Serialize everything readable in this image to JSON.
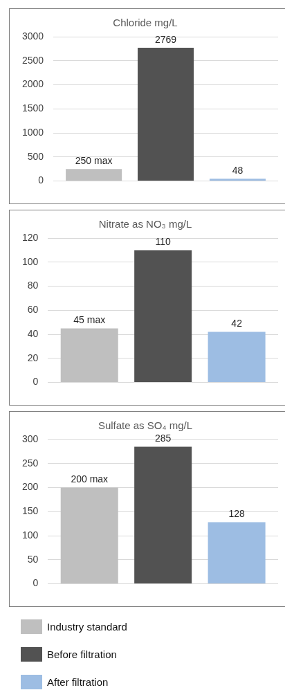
{
  "chart_data": [
    {
      "type": "bar",
      "title": "Chloride mg/L",
      "categories": [
        null
      ],
      "ylim": [
        0,
        3000
      ],
      "yticks": [
        0,
        500,
        1000,
        1500,
        2000,
        2500,
        3000
      ],
      "grid": "y",
      "series": [
        {
          "color": "#bfbfbf",
          "values": [
            250
          ],
          "value_labels": [
            "250 max"
          ]
        },
        {
          "color": "#525252",
          "values": [
            2769
          ],
          "value_labels": [
            "2769"
          ]
        },
        {
          "color": "#9dbde3",
          "values": [
            48
          ],
          "value_labels": [
            "48"
          ]
        }
      ]
    },
    {
      "type": "bar",
      "title": "Nitrate as NO₃ mg/L",
      "categories": [
        null
      ],
      "ylim": [
        0,
        120
      ],
      "yticks": [
        0,
        20,
        40,
        60,
        80,
        100,
        120
      ],
      "grid": "y",
      "series": [
        {
          "color": "#bfbfbf",
          "values": [
            45
          ],
          "value_labels": [
            "45 max"
          ]
        },
        {
          "color": "#525252",
          "values": [
            110
          ],
          "value_labels": [
            "110"
          ]
        },
        {
          "color": "#9dbde3",
          "values": [
            42
          ],
          "value_labels": [
            "42"
          ]
        }
      ]
    },
    {
      "type": "bar",
      "title": "Sulfate as SO₄ mg/L",
      "categories": [
        null
      ],
      "ylim": [
        0,
        300
      ],
      "yticks": [
        0,
        50,
        100,
        150,
        200,
        250,
        300
      ],
      "grid": "y",
      "legend": "bottom",
      "series": [
        {
          "name": "Industry standard",
          "color": "#bfbfbf",
          "values": [
            200
          ],
          "value_labels": [
            "200 max"
          ]
        },
        {
          "name": "Before filtration",
          "color": "#525252",
          "values": [
            285
          ],
          "value_labels": [
            "285"
          ]
        },
        {
          "name": "After filtration",
          "color": "#9dbde3",
          "values": [
            128
          ],
          "value_labels": [
            "128"
          ]
        }
      ]
    }
  ]
}
